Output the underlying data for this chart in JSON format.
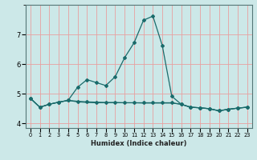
{
  "xlabel": "Humidex (Indice chaleur)",
  "background_color": "#cce8e8",
  "grid_color_major": "#e8a0a0",
  "grid_color_minor": "#e8c8c8",
  "line_color": "#1a6b6b",
  "xlim": [
    -0.5,
    23.5
  ],
  "ylim": [
    3.85,
    8.0
  ],
  "yticks": [
    4,
    5,
    6,
    7
  ],
  "xticks": [
    0,
    1,
    2,
    3,
    4,
    5,
    6,
    7,
    8,
    9,
    10,
    11,
    12,
    13,
    14,
    15,
    16,
    17,
    18,
    19,
    20,
    21,
    22,
    23
  ],
  "s1_x": [
    0,
    1,
    2,
    3,
    4,
    5,
    6,
    7,
    8,
    9,
    10,
    11,
    12,
    13,
    14,
    15,
    16,
    17,
    18,
    19,
    20,
    21,
    22,
    23
  ],
  "s1_y": [
    4.85,
    4.55,
    4.65,
    4.72,
    4.78,
    5.22,
    5.48,
    5.38,
    5.28,
    5.58,
    6.22,
    6.72,
    7.48,
    7.62,
    6.62,
    4.92,
    4.65,
    4.55,
    4.53,
    4.5,
    4.43,
    4.48,
    4.52,
    4.55
  ],
  "s2_x": [
    0,
    1,
    2,
    3,
    4,
    5,
    6,
    7,
    8,
    9,
    10,
    11,
    12,
    13,
    14,
    15,
    16,
    17,
    18,
    19,
    20,
    21,
    22,
    23
  ],
  "s2_y": [
    4.85,
    4.55,
    4.65,
    4.72,
    4.78,
    4.75,
    4.73,
    4.72,
    4.71,
    4.71,
    4.7,
    4.7,
    4.7,
    4.7,
    4.7,
    4.7,
    4.65,
    4.55,
    4.53,
    4.5,
    4.43,
    4.48,
    4.52,
    4.55
  ],
  "s3_x": [
    0,
    1,
    2,
    3,
    4,
    5,
    6,
    7,
    8,
    9,
    10,
    11,
    12,
    13,
    14,
    15,
    16,
    17,
    18,
    19,
    20,
    21,
    22,
    23
  ],
  "s3_y": [
    4.85,
    4.55,
    4.65,
    4.72,
    4.78,
    4.73,
    4.71,
    4.7,
    4.7,
    4.7,
    4.7,
    4.7,
    4.69,
    4.69,
    4.69,
    4.69,
    4.65,
    4.55,
    4.53,
    4.5,
    4.43,
    4.48,
    4.52,
    4.55
  ]
}
